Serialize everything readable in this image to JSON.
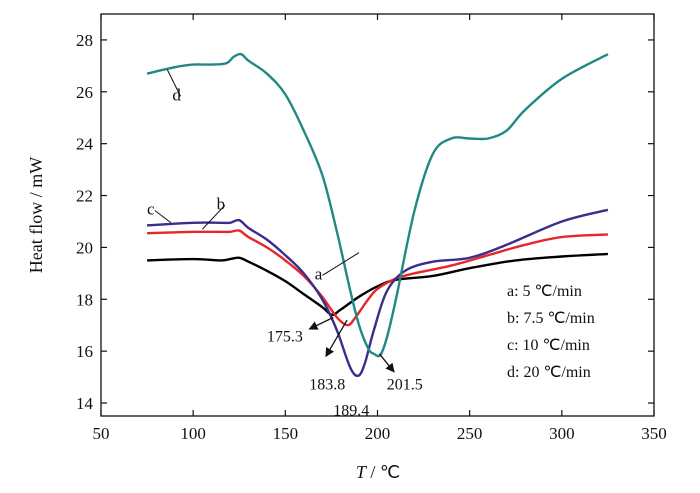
{
  "chart_data": {
    "type": "line",
    "xlabel_symbol": "T",
    "xlabel_unit": " / ℃",
    "ylabel": "Heat flow / mW",
    "xlim": [
      50,
      350
    ],
    "ylim": [
      13.5,
      29
    ],
    "xticks": [
      50,
      100,
      150,
      200,
      250,
      300,
      350
    ],
    "yticks": [
      14,
      16,
      18,
      20,
      22,
      24,
      26,
      28
    ],
    "series": [
      {
        "name": "a",
        "color": "#000000",
        "x": [
          75,
          100,
          115,
          120,
          125,
          130,
          140,
          150,
          160,
          170,
          175.3,
          180,
          190,
          200,
          210,
          230,
          250,
          275,
          300,
          325
        ],
        "y": [
          19.5,
          19.55,
          19.5,
          19.55,
          19.6,
          19.45,
          19.1,
          18.7,
          18.2,
          17.7,
          17.4,
          17.6,
          18.1,
          18.5,
          18.75,
          18.9,
          19.2,
          19.5,
          19.65,
          19.75
        ]
      },
      {
        "name": "b",
        "color": "#e8262a",
        "x": [
          75,
          100,
          115,
          120,
          125,
          130,
          140,
          150,
          160,
          170,
          178,
          183.8,
          188,
          195,
          200,
          210,
          220,
          240,
          260,
          280,
          300,
          325
        ],
        "y": [
          20.55,
          20.6,
          20.6,
          20.6,
          20.65,
          20.4,
          20.0,
          19.5,
          18.9,
          18.1,
          17.3,
          17.0,
          17.3,
          18.0,
          18.4,
          18.8,
          19.0,
          19.3,
          19.7,
          20.1,
          20.4,
          20.5
        ]
      },
      {
        "name": "c",
        "color": "#3a2d8c",
        "x": [
          75,
          100,
          115,
          120,
          125,
          130,
          140,
          150,
          160,
          170,
          178,
          185,
          189.4,
          193,
          198,
          205,
          215,
          230,
          250,
          270,
          300,
          325
        ],
        "y": [
          20.85,
          20.95,
          20.95,
          20.95,
          21.05,
          20.75,
          20.3,
          19.7,
          19.0,
          18.0,
          16.8,
          15.4,
          15.05,
          15.5,
          16.8,
          18.3,
          19.1,
          19.45,
          19.6,
          20.1,
          21.0,
          21.45
        ]
      },
      {
        "name": "d",
        "color": "#218884",
        "x": [
          75,
          90,
          100,
          110,
          118,
          122,
          126,
          130,
          140,
          150,
          160,
          170,
          178,
          185,
          190,
          195,
          198,
          201.5,
          205,
          210,
          220,
          230,
          240,
          250,
          260,
          270,
          280,
          300,
          325
        ],
        "y": [
          26.7,
          26.95,
          27.05,
          27.05,
          27.1,
          27.35,
          27.45,
          27.2,
          26.7,
          25.9,
          24.5,
          22.8,
          20.6,
          18.4,
          17.0,
          16.1,
          15.9,
          15.85,
          16.5,
          18.0,
          21.4,
          23.6,
          24.2,
          24.2,
          24.2,
          24.5,
          25.3,
          26.5,
          27.45
        ]
      }
    ],
    "series_labels": [
      {
        "text": "a",
        "x": 168,
        "y": 19.0,
        "tx": 190,
        "ty": 19.8
      },
      {
        "text": "b",
        "x": 115,
        "y": 21.7,
        "tx": 105,
        "ty": 20.7
      },
      {
        "text": "c",
        "x": 77,
        "y": 21.5,
        "tx": 88,
        "ty": 20.95
      },
      {
        "text": "d",
        "x": 91,
        "y": 25.9,
        "tx": 86,
        "ty": 26.85
      }
    ],
    "annotations": [
      {
        "text": "175.3",
        "lx": 140,
        "ly": 16.6,
        "from": [
          176,
          17.3
        ],
        "to": [
          163,
          16.85
        ]
      },
      {
        "text": "183.8",
        "lx": 163,
        "ly": 14.75,
        "from": [
          183.5,
          17.2
        ],
        "to": [
          172,
          15.8
        ]
      },
      {
        "text": "189.4",
        "lx": 176,
        "ly": 13.75,
        "from": null,
        "to": null
      },
      {
        "text": "201.5",
        "lx": 205,
        "ly": 14.75,
        "from": [
          201,
          15.9
        ],
        "to": [
          209,
          15.2
        ]
      }
    ],
    "legend": {
      "position": "bottom-right",
      "entries": [
        "a: 5  ℃/min",
        "b: 7.5  ℃/min",
        "c: 10  ℃/min",
        "d: 20  ℃/min"
      ]
    }
  }
}
